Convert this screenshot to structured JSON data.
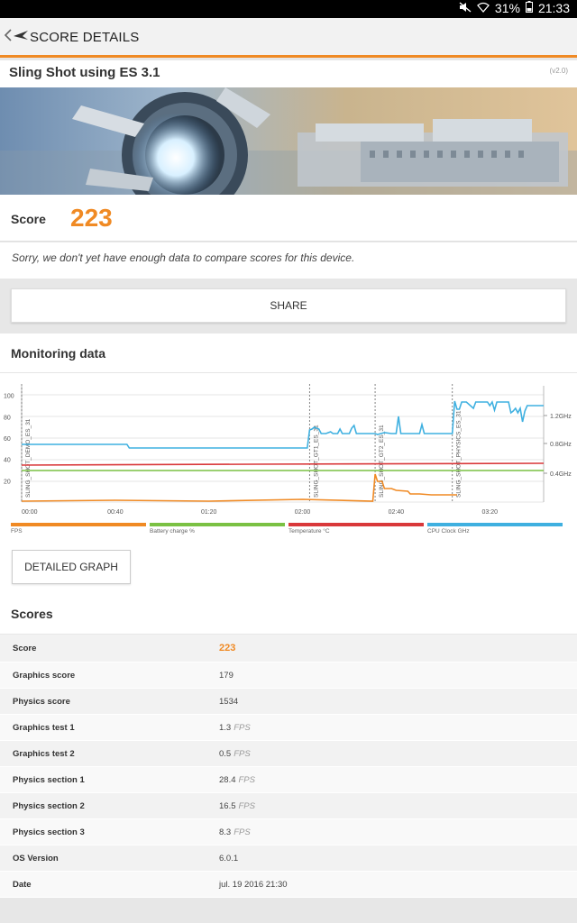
{
  "status": {
    "battery": "31%",
    "time": "21:33"
  },
  "appbar": {
    "title": "SCORE DETAILS"
  },
  "test": {
    "title": "Sling Shot using ES 3.1",
    "version": "(v2.0)"
  },
  "score": {
    "label": "Score",
    "value": "223"
  },
  "compare_message": "Sorry, we don't yet have enough data to compare scores for this device.",
  "share_label": "SHARE",
  "monitoring": {
    "title": "Monitoring data",
    "detailed_graph_label": "DETAILED GRAPH"
  },
  "chart_data": {
    "type": "line",
    "x_ticks": [
      "00:00",
      "00:40",
      "01:20",
      "02:00",
      "02:40",
      "03:20"
    ],
    "y_ticks_left": [
      "100",
      "80",
      "60",
      "40",
      "20"
    ],
    "y_ticks_right": [
      "1.2GHz",
      "0.8GHz",
      "0.4GHz"
    ],
    "markers": [
      {
        "label": "SLING_SHOT_DEMO_ES_31",
        "t": 0
      },
      {
        "label": "SLING_SHOT_GT1_ES_31",
        "t": 123
      },
      {
        "label": "SLING_SHOT_GT2_ES_31",
        "t": 151
      },
      {
        "label": "SLING_SHOT_PHYSICS_ES_31",
        "t": 184
      }
    ],
    "series": [
      {
        "name": "FPS",
        "color": "#f08a24"
      },
      {
        "name": "Battery charge %",
        "color": "#7ac143"
      },
      {
        "name": "Temperature °C",
        "color": "#d9383a"
      },
      {
        "name": "CPU Clock GHz",
        "color": "#3fb0e0"
      }
    ]
  },
  "scores": {
    "title": "Scores",
    "rows": [
      {
        "label": "Score",
        "value": "223",
        "unit": ""
      },
      {
        "label": "Graphics score",
        "value": "179",
        "unit": ""
      },
      {
        "label": "Physics score",
        "value": "1534",
        "unit": ""
      },
      {
        "label": "Graphics test 1",
        "value": "1.3",
        "unit": "FPS"
      },
      {
        "label": "Graphics test 2",
        "value": "0.5",
        "unit": "FPS"
      },
      {
        "label": "Physics section 1",
        "value": "28.4",
        "unit": "FPS"
      },
      {
        "label": "Physics section 2",
        "value": "16.5",
        "unit": "FPS"
      },
      {
        "label": "Physics section 3",
        "value": "8.3",
        "unit": "FPS"
      },
      {
        "label": "OS Version",
        "value": "6.0.1",
        "unit": ""
      },
      {
        "label": "Date",
        "value": "jul. 19 2016 21:30",
        "unit": ""
      }
    ]
  }
}
